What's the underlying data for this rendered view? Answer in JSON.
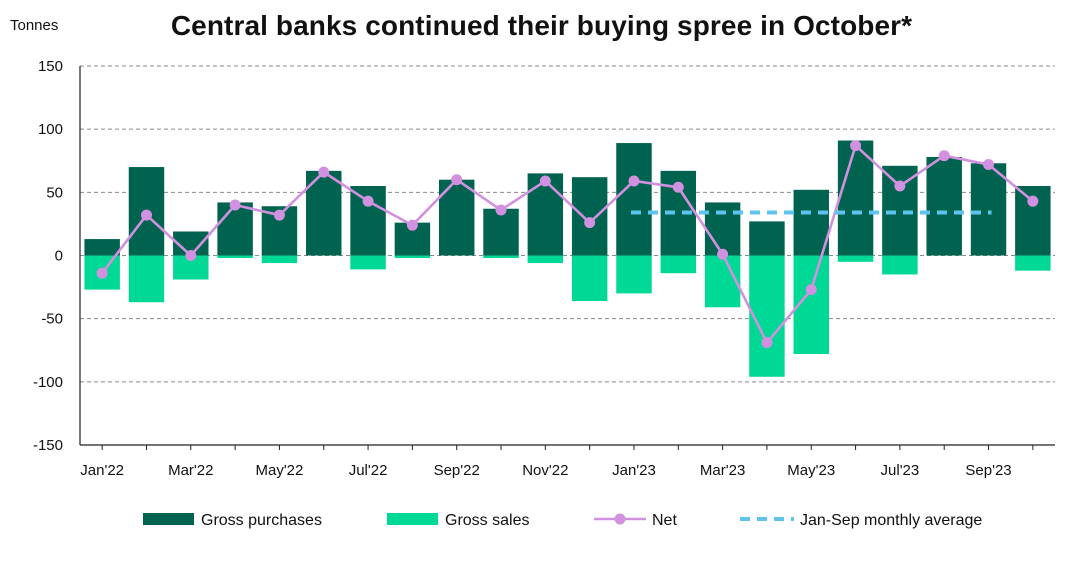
{
  "chart_data": {
    "type": "bar",
    "title": "Central banks continued their buying spree in October*",
    "ylabel": "Tonnes",
    "ylim": [
      -150,
      150
    ],
    "yticks": [
      150,
      100,
      50,
      0,
      -50,
      -100,
      -150
    ],
    "grid": true,
    "legend_position": "bottom",
    "categories": [
      "Jan'22",
      "Feb'22",
      "Mar'22",
      "Apr'22",
      "May'22",
      "Jun'22",
      "Jul'22",
      "Aug'22",
      "Sep'22",
      "Oct'22",
      "Nov'22",
      "Dec'22",
      "Jan'23",
      "Feb'23",
      "Mar'23",
      "Apr'23",
      "May'23",
      "Jun'23",
      "Jul'23",
      "Aug'23",
      "Sep'23",
      "Oct'23"
    ],
    "x_tick_labels": [
      "Jan'22",
      "",
      "Mar'22",
      "",
      "May'22",
      "",
      "Jul'22",
      "",
      "Sep'22",
      "",
      "Nov'22",
      "",
      "Jan'23",
      "",
      "Mar'23",
      "",
      "May'23",
      "",
      "Jul'23",
      "",
      "Sep'23",
      ""
    ],
    "series": [
      {
        "name": "Gross purchases",
        "type": "bar",
        "color": "#00634f",
        "values": [
          13,
          70,
          19,
          42,
          39,
          67,
          55,
          26,
          60,
          37,
          65,
          62,
          89,
          67,
          42,
          27,
          52,
          91,
          71,
          78,
          73,
          55
        ]
      },
      {
        "name": "Gross sales",
        "type": "bar",
        "color": "#00d896",
        "values": [
          -27,
          -37,
          -19,
          -2,
          -6,
          0,
          -11,
          -2,
          0,
          -2,
          -6,
          -36,
          -30,
          -14,
          -41,
          -96,
          -78,
          -5,
          -15,
          0,
          0,
          -12
        ]
      },
      {
        "name": "Net",
        "type": "line",
        "color": "#d291e0",
        "values": [
          -14,
          32,
          0,
          40,
          32,
          66,
          43,
          24,
          60,
          36,
          59,
          26,
          59,
          54,
          1,
          -69,
          -27,
          87,
          55,
          79,
          72,
          43
        ]
      },
      {
        "name": "Jan-Sep monthly average",
        "type": "line",
        "style": "dashed",
        "color": "#5dc3ef",
        "x_start": "Jan'23",
        "x_end": "Sep'23",
        "value": 34
      }
    ]
  }
}
